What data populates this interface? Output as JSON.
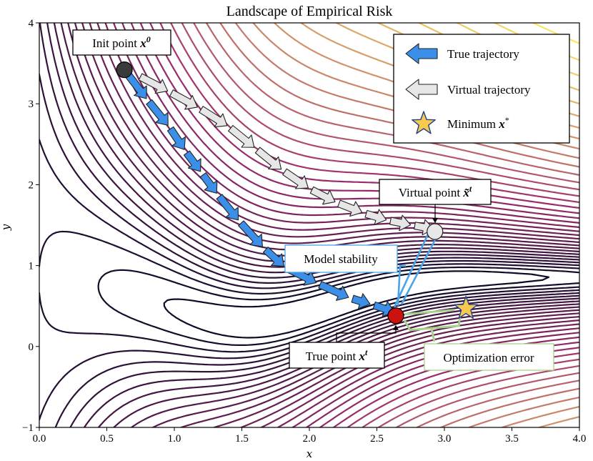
{
  "chart_data": {
    "type": "contour",
    "title": "Landscape of Empirical Risk",
    "xlabel": "x",
    "ylabel": "y",
    "xlim": [
      0.0,
      4.0
    ],
    "ylim": [
      -1,
      4
    ],
    "x_ticks": [
      "0.0",
      "0.5",
      "1.0",
      "1.5",
      "2.0",
      "2.5",
      "3.0",
      "3.5",
      "4.0"
    ],
    "y_ticks": [
      "−1",
      "0",
      "1",
      "2",
      "3",
      "4"
    ],
    "contour_levels": 36,
    "colormap": {
      "name": "inferno-like",
      "low": "#0f0a28",
      "mid": "#9c2c6c",
      "high": "#fbe36a"
    },
    "init_point": {
      "x": 0.63,
      "y": 3.42
    },
    "true_point": {
      "x": 2.64,
      "y": 0.38
    },
    "virtual_point": {
      "x": 2.93,
      "y": 1.42
    },
    "minimum_point": {
      "x": 3.16,
      "y": 0.47
    },
    "true_trajectory": [
      [
        0.63,
        3.42
      ],
      [
        0.8,
        3.05
      ],
      [
        0.96,
        2.72
      ],
      [
        1.08,
        2.42
      ],
      [
        1.2,
        2.15
      ],
      [
        1.32,
        1.88
      ],
      [
        1.48,
        1.55
      ],
      [
        1.66,
        1.22
      ],
      [
        1.82,
        0.98
      ],
      [
        2.06,
        0.78
      ],
      [
        2.3,
        0.6
      ],
      [
        2.46,
        0.52
      ],
      [
        2.64,
        0.42
      ]
    ],
    "virtual_trajectory": [
      [
        0.73,
        3.35
      ],
      [
        0.96,
        3.15
      ],
      [
        1.18,
        2.95
      ],
      [
        1.4,
        2.72
      ],
      [
        1.6,
        2.45
      ],
      [
        1.8,
        2.18
      ],
      [
        2.0,
        1.95
      ],
      [
        2.2,
        1.78
      ],
      [
        2.4,
        1.65
      ],
      [
        2.58,
        1.56
      ],
      [
        2.76,
        1.5
      ],
      [
        2.93,
        1.45
      ]
    ],
    "annotations": {
      "init": {
        "label": "Init point",
        "math": "x",
        "sup": "0"
      },
      "virtual": {
        "label": "Virtual point",
        "math": "x̃",
        "sup": "t"
      },
      "true": {
        "label": "True point",
        "math": "x",
        "sup": "t"
      },
      "model_stability": "Model stability",
      "optimization_error": "Optimization error"
    },
    "legend": {
      "position": "top-right",
      "entries": [
        {
          "label": "True trajectory",
          "marker": "blue-arrow"
        },
        {
          "label": "Virtual trajectory",
          "marker": "gray-arrow"
        },
        {
          "label": "Minimum",
          "math": "x",
          "sup": "*",
          "marker": "gold-star"
        }
      ]
    },
    "colors": {
      "true_arrow": "#3b8fe8",
      "virtual_arrow": "#e6e6e6",
      "star": "#f7c94e",
      "true_point": "#cc1111",
      "init_point": "#3a3a3a",
      "virtual_point": "#e8e8e8",
      "stability": "#4aa3e8",
      "opt_error": "#a9d18e"
    }
  }
}
